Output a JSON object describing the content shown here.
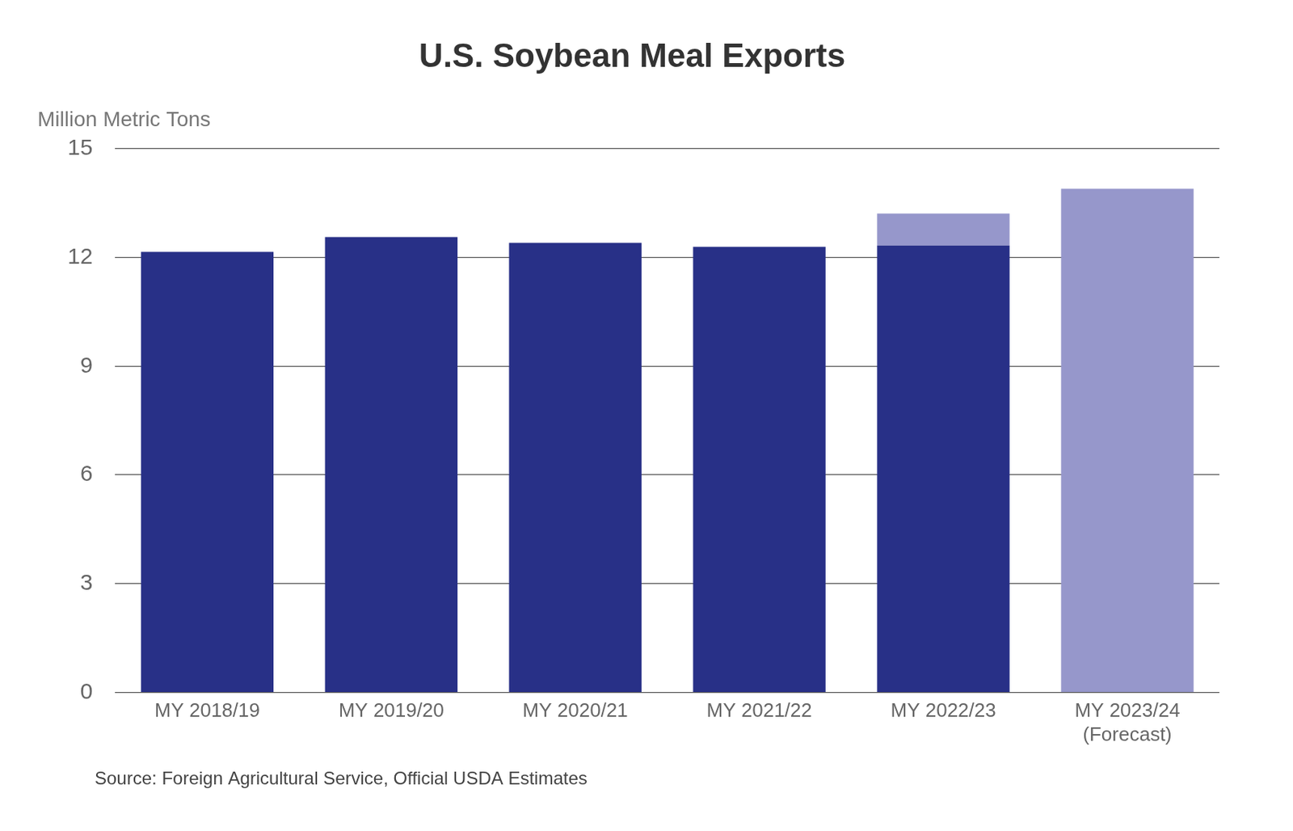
{
  "chart_data": {
    "type": "bar",
    "title": "U.S. Soybean Meal Exports",
    "y_label": "Million Metric Tons",
    "source": "Source: Foreign Agricultural Service, Official USDA Estimates",
    "categories": [
      "MY 2018/19",
      "MY 2019/20",
      "MY 2020/21",
      "MY 2021/22",
      "MY 2022/23",
      "MY 2023/24\n(Forecast)"
    ],
    "series": [
      {
        "color": "#283087",
        "values": [
          12.15,
          12.56,
          12.4,
          12.29,
          12.33,
          null
        ]
      },
      {
        "color": "#9697cb",
        "values": [
          null,
          null,
          null,
          null,
          0.88,
          13.89
        ]
      }
    ],
    "stacked": true,
    "ylim": [
      0,
      15
    ],
    "yticks": [
      0,
      3,
      6,
      9,
      12,
      15
    ],
    "grid": true
  }
}
